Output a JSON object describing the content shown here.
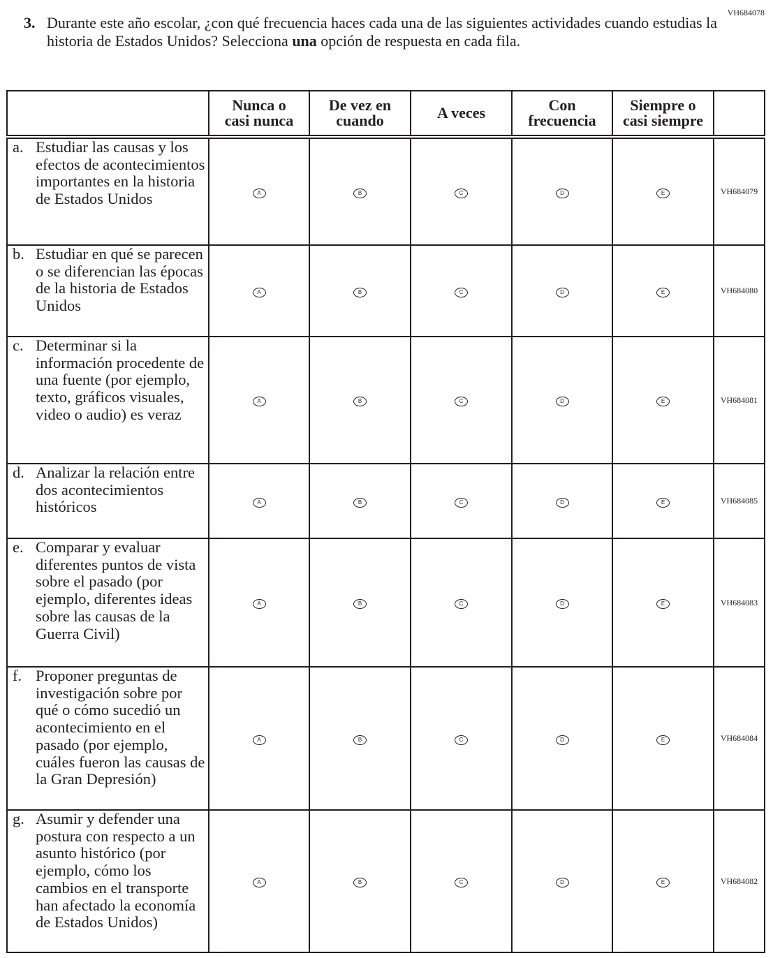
{
  "item_code": "VH684078",
  "question": {
    "number": "3.",
    "text_before": "Durante este año escolar, ¿con qué frecuencia haces cada una de las siguientes actividades cuando estudias la historia de Estados Unidos? Selecciona ",
    "text_bold": "una",
    "text_after": " opción de respuesta en cada fila."
  },
  "columns": [
    "Nunca o casi nunca",
    "De vez en cuando",
    "A veces",
    "Con frecuencia",
    "Siempre o casi siempre"
  ],
  "options": [
    "A",
    "B",
    "C",
    "D",
    "E"
  ],
  "rows": [
    {
      "letter": "a.",
      "text": "Estudiar las causas y los efectos de acontecimientos importantes en la historia de Estados Unidos",
      "code": "VH684079"
    },
    {
      "letter": "b.",
      "text": "Estudiar en qué se parecen o se diferencian las épocas de la historia de Estados Unidos",
      "code": "VH684080"
    },
    {
      "letter": "c.",
      "text": "Determinar si la información procedente de una fuente (por ejemplo, texto, gráficos visuales, video o audio) es veraz",
      "code": "VH684081"
    },
    {
      "letter": "d.",
      "text": "Analizar la relación entre dos acontecimientos históricos",
      "code": "VH684085"
    },
    {
      "letter": "e.",
      "text": "Comparar y evaluar diferentes puntos de vista sobre el pasado (por ejemplo, diferentes ideas sobre las causas de la Guerra Civil)",
      "code": "VH684083"
    },
    {
      "letter": "f.",
      "text": "Proponer preguntas de investigación sobre por qué o cómo sucedió un acontecimiento en el pasado (por ejemplo, cuáles fueron las causas de la Gran Depresión)",
      "code": "VH684084"
    },
    {
      "letter": "g.",
      "text": "Asumir y defender una postura con respecto a un asunto histórico (por ejemplo, cómo los cambios en el transporte han afectado la economía de Estados Unidos)",
      "code": "VH684082"
    }
  ]
}
